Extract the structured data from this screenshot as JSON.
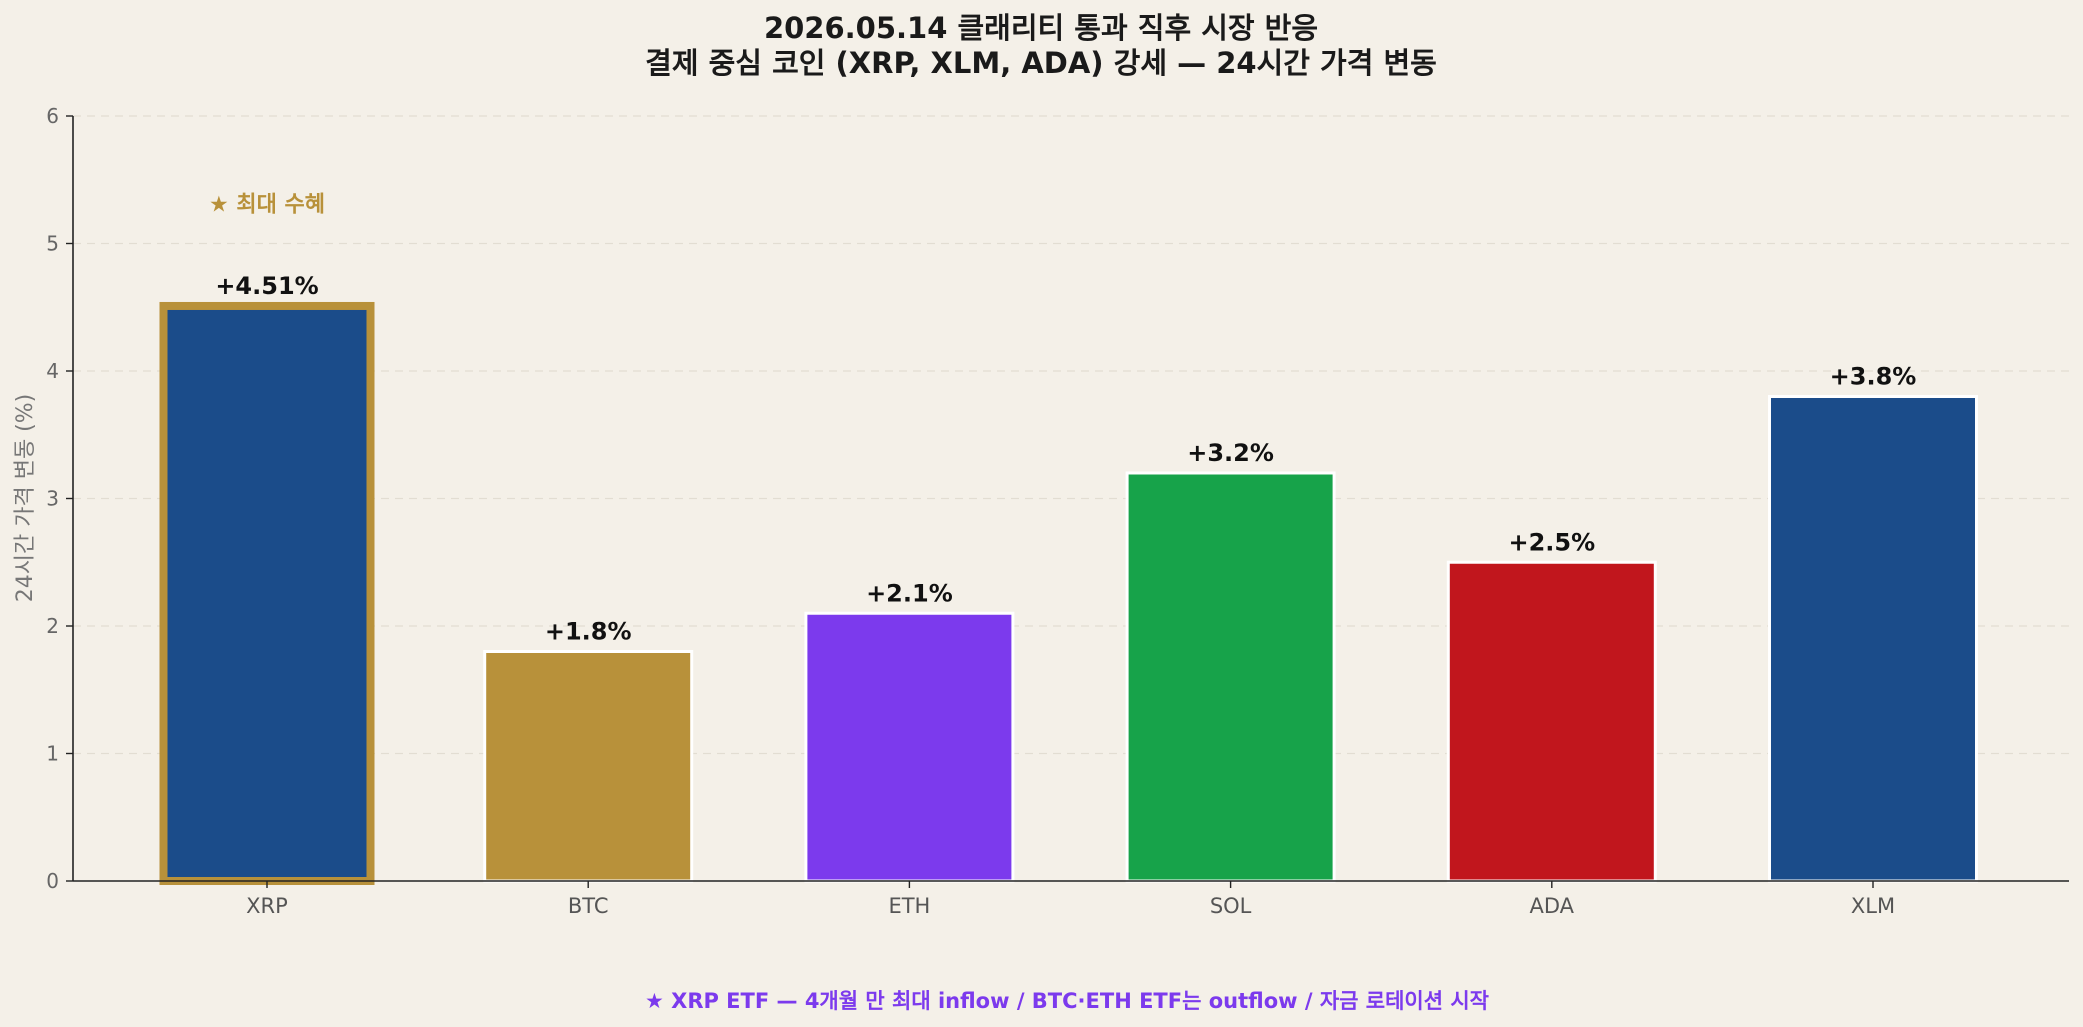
{
  "chart_data": {
    "type": "bar",
    "title": "2026.05.14 클래리티 통과 직후 시장 반응",
    "subtitle": "결제 중심 코인 (XRP, XLM, ADA) 강세 — 24시간 가격 변동",
    "ylabel": "24시간 가격 변동 (%)",
    "xlabel": "",
    "ylim": [
      0,
      6
    ],
    "yticks": [
      "0",
      "1",
      "2",
      "3",
      "4",
      "5",
      "6"
    ],
    "grid": true,
    "categories": [
      "XRP",
      "BTC",
      "ETH",
      "SOL",
      "ADA",
      "XLM"
    ],
    "values": [
      4.51,
      1.8,
      2.1,
      3.2,
      2.5,
      3.8
    ],
    "data_labels": [
      "+4.51%",
      "+1.8%",
      "+2.1%",
      "+3.2%",
      "+2.5%",
      "+3.8%"
    ],
    "colors": [
      "#1b4c8a",
      "#b8913a",
      "#7c3aed",
      "#17a34a",
      "#c1161d",
      "#1b4c8a"
    ],
    "highlight_index": 0,
    "highlight_color": "#b8913a",
    "highlight_label": "★ 최대 수혜",
    "footnote": "★ XRP ETF — 4개월 만 최대 inflow / BTC·ETH ETF는 outflow / 자금 로테이션 시작",
    "footnote_color": "#7c3aed"
  }
}
